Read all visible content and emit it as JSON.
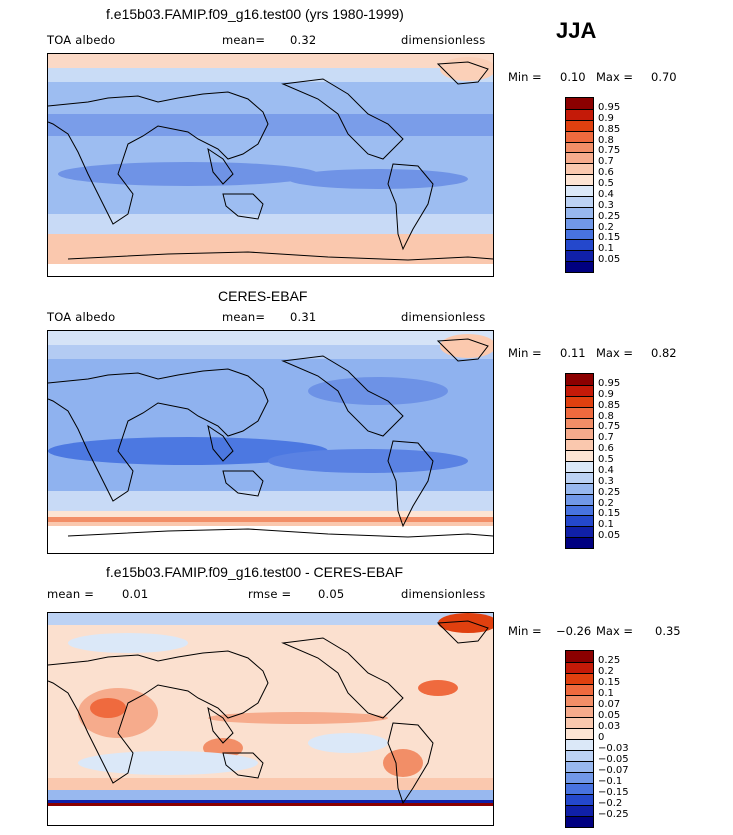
{
  "season": "JJA",
  "panels": [
    {
      "title": "f.e15b03.FAMIP.f09_g16.test00 (yrs 1980-1999)",
      "left_label": "TOA albedo",
      "mean_label": "mean=",
      "mean_value": "0.32",
      "units": "dimensionless",
      "min_label": "Min =",
      "min_value": "0.10",
      "max_label": "Max =",
      "max_value": "0.70",
      "colorbar": {
        "labels": [
          "0.95",
          "0.9",
          "0.85",
          "0.8",
          "0.75",
          "0.7",
          "0.6",
          "0.5",
          "0.4",
          "0.3",
          "0.25",
          "0.2",
          "0.15",
          "0.1",
          "0.05"
        ],
        "colors": [
          "#8b0000",
          "#c41a08",
          "#e0400f",
          "#ef6a3e",
          "#f28e67",
          "#f6ab8c",
          "#fac8ae",
          "#fde4d3",
          "#dbe8f8",
          "#bcd2f4",
          "#98b8ef",
          "#7198e8",
          "#4873e0",
          "#2448cc",
          "#1020a8",
          "#000080"
        ]
      }
    },
    {
      "title": "CERES-EBAF",
      "left_label": "TOA albedo",
      "mean_label": "mean=",
      "mean_value": "0.31",
      "units": "dimensionless",
      "min_label": "Min =",
      "min_value": "0.11",
      "max_label": "Max =",
      "max_value": "0.82",
      "colorbar": {
        "labels": [
          "0.95",
          "0.9",
          "0.85",
          "0.8",
          "0.75",
          "0.7",
          "0.6",
          "0.5",
          "0.4",
          "0.3",
          "0.25",
          "0.2",
          "0.15",
          "0.1",
          "0.05"
        ],
        "colors": [
          "#8b0000",
          "#c41a08",
          "#e0400f",
          "#ef6a3e",
          "#f28e67",
          "#f6ab8c",
          "#fac8ae",
          "#fde4d3",
          "#dbe8f8",
          "#bcd2f4",
          "#98b8ef",
          "#7198e8",
          "#4873e0",
          "#2448cc",
          "#1020a8",
          "#000080"
        ]
      }
    },
    {
      "title": "f.e15b03.FAMIP.f09_g16.test00 - CERES-EBAF",
      "left_label": "mean =",
      "mean_label": "0.01",
      "mean_value": "rmse =",
      "rmse_value": "0.05",
      "units": "dimensionless",
      "min_label": "Min =",
      "min_value": "−0.26",
      "max_label": "Max =",
      "max_value": "0.35",
      "colorbar": {
        "labels": [
          "0.25",
          "0.2",
          "0.15",
          "0.1",
          "0.07",
          "0.05",
          "0.03",
          "0",
          "−0.03",
          "−0.05",
          "−0.07",
          "−0.1",
          "−0.15",
          "−0.2",
          "−0.25"
        ],
        "colors": [
          "#8b0000",
          "#c41a08",
          "#e0400f",
          "#ef6a3e",
          "#f28e67",
          "#f6ab8c",
          "#fac8ae",
          "#fde4d3",
          "#dbe8f8",
          "#bcd2f4",
          "#98b8ef",
          "#7198e8",
          "#4873e0",
          "#2448cc",
          "#1020a8",
          "#000080"
        ]
      }
    }
  ]
}
